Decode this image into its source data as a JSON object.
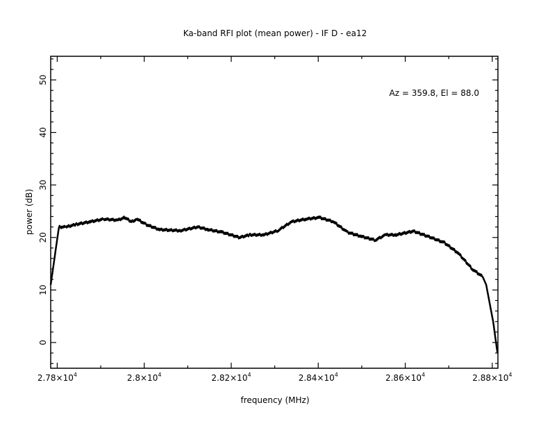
{
  "chart_data": {
    "type": "line",
    "title": "Ka-band RFI plot (mean power) - IF D - ea12",
    "xlabel": "frequency (MHz)",
    "ylabel": "power (dB)",
    "annotation": "Az = 359.8, El = 88.0",
    "xlim": [
      27785,
      28813
    ],
    "ylim": [
      -4.9,
      54.5
    ],
    "x_ticks": [
      27800,
      28000,
      28200,
      28400,
      28600,
      28800
    ],
    "x_tick_labels": [
      {
        "mant": "2.78×10",
        "exp": "4"
      },
      {
        "mant": "2.8×10",
        "exp": "4"
      },
      {
        "mant": "2.82×10",
        "exp": "4"
      },
      {
        "mant": "2.84×10",
        "exp": "4"
      },
      {
        "mant": "2.86×10",
        "exp": "4"
      },
      {
        "mant": "2.88×10",
        "exp": "4"
      }
    ],
    "y_ticks": [
      0,
      10,
      20,
      30,
      40,
      50
    ],
    "y_tick_labels": [
      "0",
      "10",
      "20",
      "30",
      "40",
      "50"
    ],
    "grid": false,
    "series": [
      {
        "name": "mean power",
        "x": [
          27785,
          27804,
          27820,
          27844,
          27876,
          27907,
          27939,
          27955,
          27971,
          27984,
          28003,
          28035,
          28083,
          28123,
          28147,
          28179,
          28219,
          28243,
          28275,
          28307,
          28339,
          28371,
          28403,
          28435,
          28467,
          28499,
          28531,
          28555,
          28579,
          28619,
          28659,
          28690,
          28722,
          28754,
          28778,
          28786,
          28802,
          28812
        ],
        "y": [
          11,
          22,
          22,
          22.5,
          23,
          23.5,
          23.3,
          23.8,
          23,
          23.5,
          22.5,
          21.5,
          21.3,
          22,
          21.5,
          21,
          20,
          20.5,
          20.5,
          21.3,
          23,
          23.5,
          23.8,
          23,
          21,
          20.2,
          19.5,
          20.5,
          20.5,
          21.2,
          20,
          19,
          17,
          14,
          12.5,
          11,
          4,
          -2
        ]
      }
    ]
  }
}
